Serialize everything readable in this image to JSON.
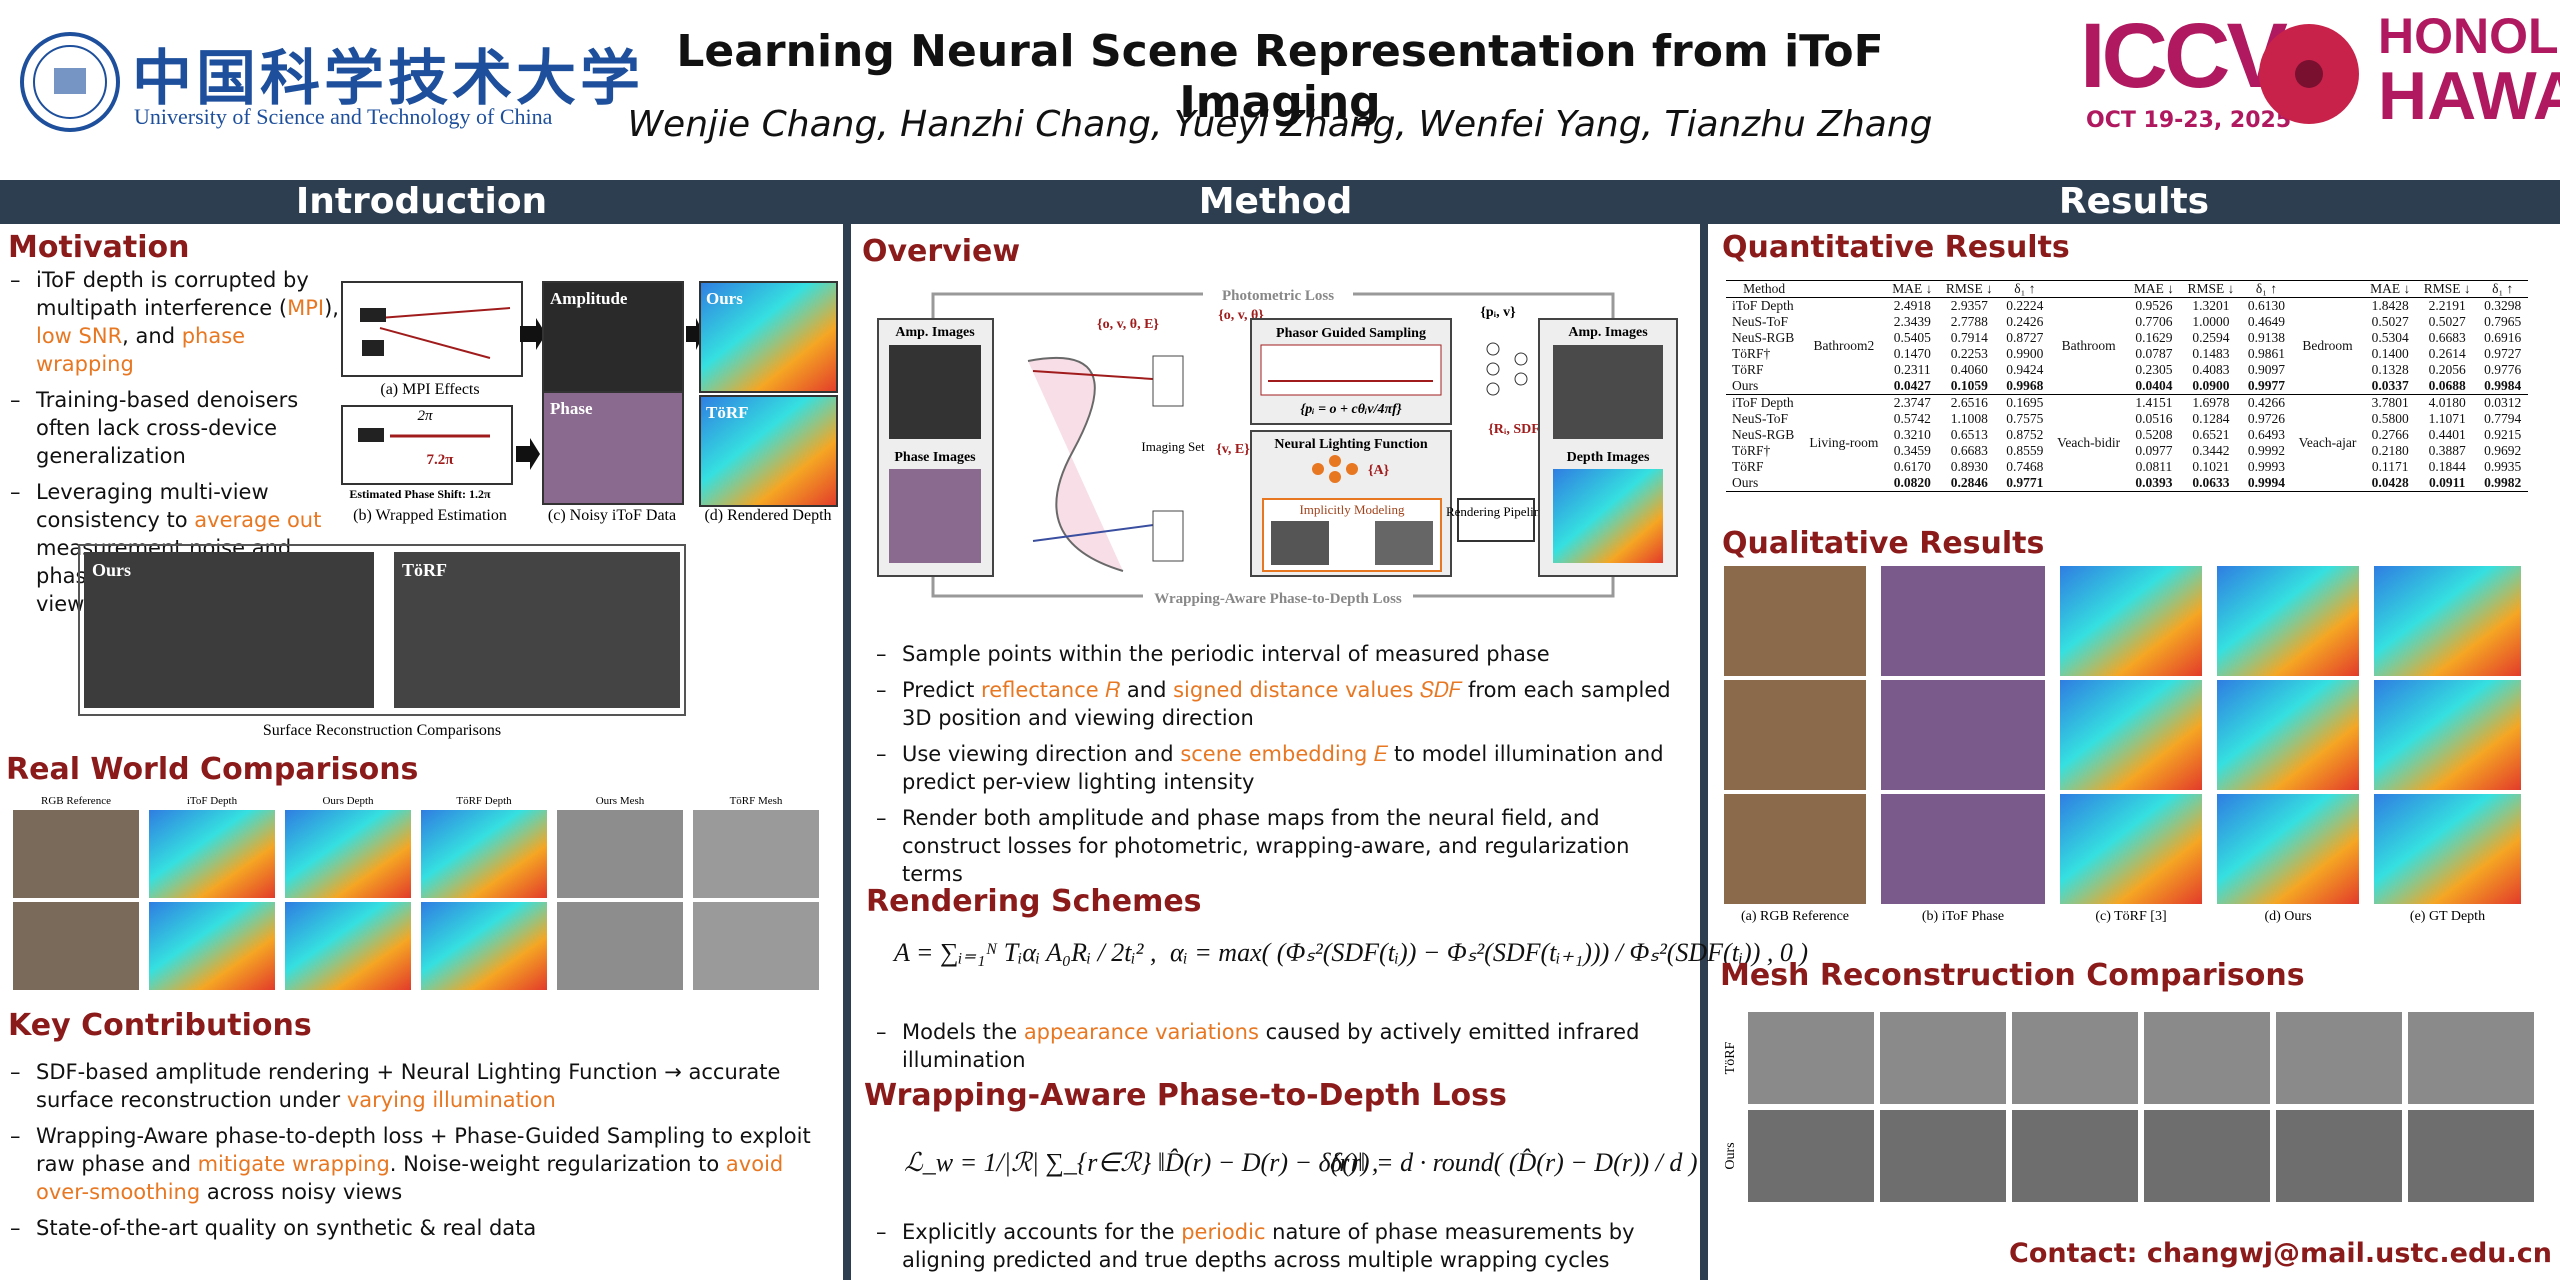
{
  "header": {
    "affiliation_cn": "中国科学技术大学",
    "affiliation_en": "University of Science and Technology of China",
    "title": "Learning Neural Scene Representation from iToF Imaging",
    "authors": "Wenjie Chang, Hanzhi Chang, Yueyi Zhang, Wenfei Yang, Tianzhu Zhang",
    "conference": {
      "name": "ICCV",
      "dates": "OCT 19-23, 2025",
      "city": "HONOLULU",
      "state": "HAWAII"
    }
  },
  "introduction": {
    "heading": "Introduction",
    "motivation": {
      "heading": "Motivation",
      "bullets": [
        [
          "iToF depth is corrupted by multipath interference (",
          {
            "highlight": "MPI"
          },
          "), ",
          {
            "highlight": "low SNR"
          },
          ", and ",
          {
            "highlight": "phase wrapping"
          }
        ],
        [
          "Training-based denoisers often lack cross-device generalization"
        ],
        [
          "Leveraging multi-view consistency to ",
          {
            "highlight": "average out"
          },
          " measurement noise and phase discontinuities across views"
        ]
      ],
      "figure": {
        "amplitude": "Amplitude",
        "phase": "Phase",
        "ours": "Ours",
        "torf": "TöRF",
        "two_pi": "2π",
        "wrapped": "7.2π",
        "estimated": "Estimated Phase Shift: 1.2π",
        "captions": [
          "(a) MPI Effects",
          "(b) Wrapped Estimation",
          "(c) Noisy iToF Data",
          "(d) Rendered Depth"
        ]
      },
      "surface_figure": {
        "ours": "Ours",
        "torf": "TöRF",
        "caption": "Surface Reconstruction Comparisons"
      }
    },
    "real_world": {
      "heading": "Real World Comparisons",
      "labels": [
        "RGB Reference",
        "iToF Depth",
        "Ours Depth",
        "TöRF Depth",
        "Ours Mesh",
        "TöRF Mesh"
      ]
    },
    "contributions": {
      "heading": "Key Contributions",
      "bullets": [
        [
          "SDF-based amplitude rendering + Neural Lighting Function → accurate surface reconstruction under ",
          {
            "highlight": "varying illumination"
          }
        ],
        [
          "Wrapping-Aware phase-to-depth loss + Phase-Guided Sampling to exploit raw phase and ",
          {
            "highlight": "mitigate wrapping"
          },
          ". Noise-weight regularization to ",
          {
            "highlight": "avoid over-smoothing"
          },
          " across noisy views"
        ],
        [
          "State-of-the-art quality on synthetic & real data"
        ]
      ]
    }
  },
  "method": {
    "heading": "Method",
    "overview": {
      "heading": "Overview",
      "diagram": {
        "photometric_loss": "Photometric Loss",
        "amp_images": "Amp. Images",
        "phase_images": "Phase Images",
        "depth_images": "Depth Images",
        "inputs": "{o, v, θ, E}",
        "sampling_inputs": "{o, v, θ}",
        "lighting_inputs": "{v, E}",
        "points": "{pᵢ, v}",
        "outputs": "{Rᵢ, SDFᵢ}",
        "amplitude": "{A}",
        "imaging_set": "Imaging Set",
        "phasor_sampling": "Phasor Guided Sampling",
        "phasor_formula": "{pᵢ = o + cθᵢv/4πf}",
        "neural_lighting": "Neural Lighting Function",
        "implicit": "Implicitly Modeling",
        "rendering": "Rendering Pipeline",
        "wrapping_loss": "Wrapping-Aware Phase-to-Depth Loss"
      },
      "bullets": [
        [
          "Sample points within the periodic interval of measured phase"
        ],
        [
          "Predict ",
          {
            "highlight": "reflectance 𝑅"
          },
          " and ",
          {
            "highlight": "signed distance values 𝑆𝐷𝐹"
          },
          " from each sampled 3D position and viewing direction"
        ],
        [
          "Use viewing direction and ",
          {
            "highlight": "scene embedding 𝐸"
          },
          " to model illumination and predict per-view lighting intensity"
        ],
        [
          "Render both amplitude and phase maps from the neural field, and construct losses for photometric, wrapping-aware, and regularization terms"
        ]
      ]
    },
    "rendering": {
      "heading": "Rendering Schemes",
      "formulas": [
        "A = ∑ᵢ₌₁ᴺ Tᵢαᵢ A₀Rᵢ / 2tᵢ² ,",
        "αᵢ = max( (Φₛ²(SDF(tᵢ)) − Φₛ²(SDF(tᵢ₊₁))) / Φₛ²(SDF(tᵢ)) , 0 )"
      ],
      "bullets": [
        [
          "Models the ",
          {
            "highlight": "appearance variations"
          },
          " caused by actively emitted infrared illumination"
        ]
      ]
    },
    "loss": {
      "heading": "Wrapping-Aware Phase-to-Depth Loss",
      "formulas": [
        "ℒ_w = 1/|ℛ| ∑_{r∈ℛ} ‖D̂(r) − D(r) − δ(r)‖ ,",
        "δ(r) = d · round( (D̂(r) − D(r)) / d )"
      ],
      "bullets": [
        [
          "Explicitly accounts for the ",
          {
            "highlight": "periodic"
          },
          " nature of phase measurements by aligning predicted and true depths across multiple wrapping cycles"
        ]
      ]
    }
  },
  "results": {
    "heading": "Results",
    "quantitative": {
      "heading": "Quantitative Results",
      "table": {
        "method": "Method",
        "metrics": [
          "MAE ↓",
          "RMSE ↓",
          "δ₁ ↑"
        ],
        "groups": [
          {
            "scenes": [
              "Bathroom2",
              "Bathroom",
              "Bedroom"
            ],
            "rows": [
              {
                "method": "iToF Depth",
                "values": [
                  [
                    "2.4918",
                    "2.9357",
                    "0.2224"
                  ],
                  [
                    "0.9526",
                    "1.3201",
                    "0.6130"
                  ],
                  [
                    "1.8428",
                    "2.2191",
                    "0.3298"
                  ]
                ]
              },
              {
                "method": "NeuS-ToF",
                "values": [
                  [
                    "2.3439",
                    "2.7788",
                    "0.2426"
                  ],
                  [
                    "0.7706",
                    "1.0000",
                    "0.4649"
                  ],
                  [
                    "0.5027",
                    "0.5027",
                    "0.7965"
                  ]
                ]
              },
              {
                "method": "NeuS-RGB",
                "values": [
                  [
                    "0.5405",
                    "0.7914",
                    "0.8727"
                  ],
                  [
                    "0.1629",
                    "0.2594",
                    "0.9138"
                  ],
                  [
                    "0.5304",
                    "0.6683",
                    "0.6916"
                  ]
                ]
              },
              {
                "method": "TöRF†",
                "values": [
                  [
                    "0.1470",
                    "0.2253",
                    "0.9900"
                  ],
                  [
                    "0.0787",
                    "0.1483",
                    "0.9861"
                  ],
                  [
                    "0.1400",
                    "0.2614",
                    "0.9727"
                  ]
                ]
              },
              {
                "method": "TöRF",
                "values": [
                  [
                    "0.2311",
                    "0.4060",
                    "0.9424"
                  ],
                  [
                    "0.2305",
                    "0.4083",
                    "0.9097"
                  ],
                  [
                    "0.1328",
                    "0.2056",
                    "0.9776"
                  ]
                ]
              },
              {
                "method": "Ours",
                "values": [
                  [
                    "0.0427",
                    "0.1059",
                    "0.9968"
                  ],
                  [
                    "0.0404",
                    "0.0900",
                    "0.9977"
                  ],
                  [
                    "0.0337",
                    "0.0688",
                    "0.9984"
                  ]
                ]
              }
            ]
          },
          {
            "scenes": [
              "Living-room",
              "Veach-bidir",
              "Veach-ajar"
            ],
            "rows": [
              {
                "method": "iToF Depth",
                "values": [
                  [
                    "2.3747",
                    "2.6516",
                    "0.1695"
                  ],
                  [
                    "1.4151",
                    "1.6978",
                    "0.4266"
                  ],
                  [
                    "3.7801",
                    "4.0180",
                    "0.0312"
                  ]
                ]
              },
              {
                "method": "NeuS-ToF",
                "values": [
                  [
                    "0.5742",
                    "1.1008",
                    "0.7575"
                  ],
                  [
                    "0.0516",
                    "0.1284",
                    "0.9726"
                  ],
                  [
                    "0.5800",
                    "1.1071",
                    "0.7794"
                  ]
                ]
              },
              {
                "method": "NeuS-RGB",
                "values": [
                  [
                    "0.3210",
                    "0.6513",
                    "0.8752"
                  ],
                  [
                    "0.5208",
                    "0.6521",
                    "0.6493"
                  ],
                  [
                    "0.2766",
                    "0.4401",
                    "0.9215"
                  ]
                ]
              },
              {
                "method": "TöRF†",
                "values": [
                  [
                    "0.3459",
                    "0.6683",
                    "0.8559"
                  ],
                  [
                    "0.0977",
                    "0.3442",
                    "0.9992"
                  ],
                  [
                    "0.2180",
                    "0.3887",
                    "0.9692"
                  ]
                ]
              },
              {
                "method": "TöRF",
                "values": [
                  [
                    "0.6170",
                    "0.8930",
                    "0.7468"
                  ],
                  [
                    "0.0811",
                    "0.1021",
                    "0.9993"
                  ],
                  [
                    "0.1171",
                    "0.1844",
                    "0.9935"
                  ]
                ]
              },
              {
                "method": "Ours",
                "values": [
                  [
                    "0.0820",
                    "0.2846",
                    "0.9771"
                  ],
                  [
                    "0.0393",
                    "0.0633",
                    "0.9994"
                  ],
                  [
                    "0.0428",
                    "0.0911",
                    "0.9982"
                  ]
                ]
              }
            ]
          }
        ]
      }
    },
    "qualitative": {
      "heading": "Qualitative Results",
      "captions": [
        "(a) RGB Reference",
        "(b) iToF Phase",
        "(c) TöRF [3]",
        "(d) Ours",
        "(e) GT Depth"
      ]
    },
    "mesh": {
      "heading": "Mesh Reconstruction Comparisons",
      "rows": [
        "TöRF",
        "Ours"
      ]
    },
    "contact": "Contact: changwj@mail.ustc.edu.cn"
  }
}
